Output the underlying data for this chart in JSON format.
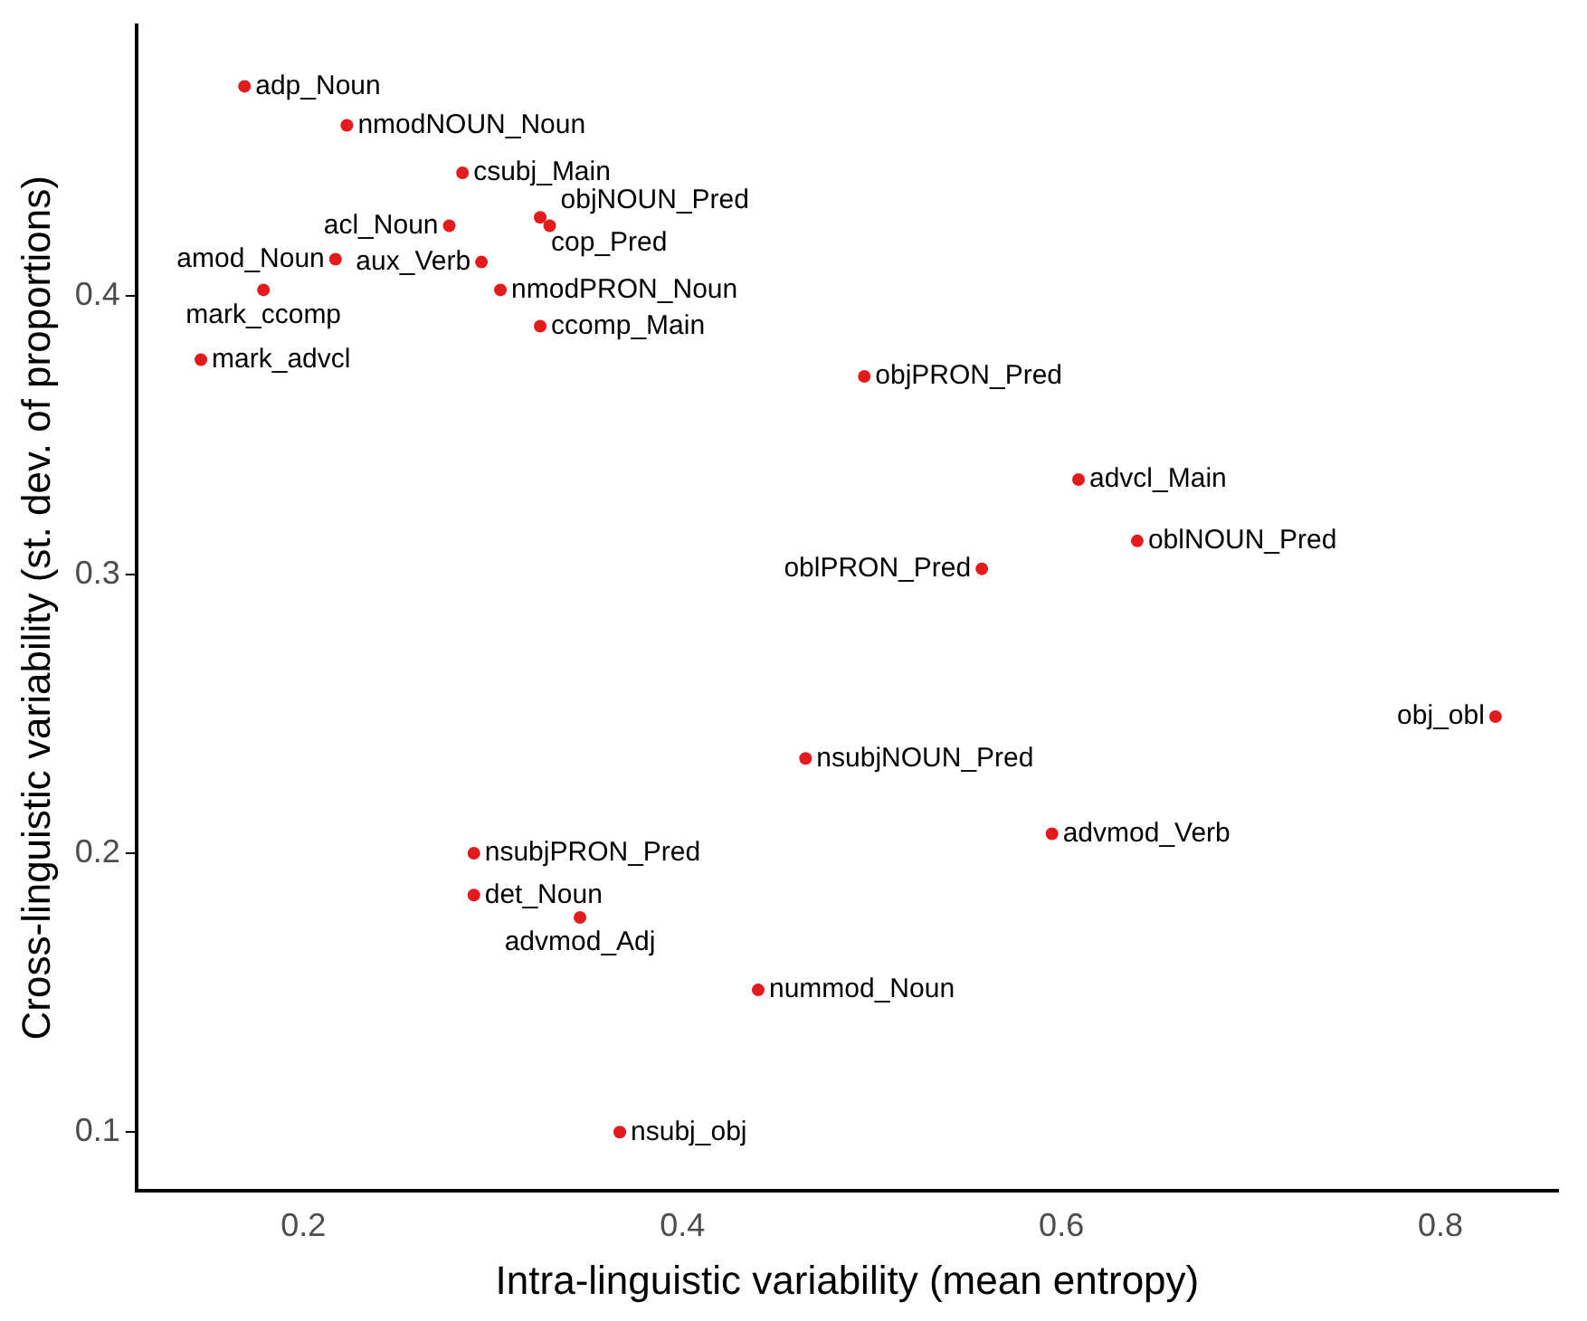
{
  "chart_data": {
    "type": "scatter",
    "xlabel": "Intra-linguistic variability (mean entropy)",
    "ylabel": "Cross-linguistic variability (st. dev. of proportions)",
    "x": [
      0.169,
      0.223,
      0.284,
      0.277,
      0.325,
      0.33,
      0.217,
      0.294,
      0.179,
      0.304,
      0.325,
      0.146,
      0.496,
      0.609,
      0.64,
      0.558,
      0.829,
      0.465,
      0.595,
      0.29,
      0.29,
      0.346,
      0.44,
      0.367
    ],
    "series": [
      {
        "color": "#e41a1c",
        "values": [
          0.475,
          0.461,
          0.444,
          0.425,
          0.428,
          0.425,
          0.413,
          0.412,
          0.402,
          0.402,
          0.389,
          0.377,
          0.371,
          0.334,
          0.312,
          0.302,
          0.249,
          0.234,
          0.207,
          0.2,
          0.185,
          0.177,
          0.151,
          0.1
        ]
      }
    ],
    "annotations": [
      {
        "text": "adp_Noun",
        "x": 0.169,
        "y": 0.475
      },
      {
        "text": "nmodNOUN_Noun",
        "x": 0.223,
        "y": 0.461
      },
      {
        "text": "csubj_Main",
        "x": 0.284,
        "y": 0.444
      },
      {
        "text": "acl_Noun",
        "x": 0.277,
        "y": 0.425
      },
      {
        "text": "cop_Pred",
        "x": 0.325,
        "y": 0.428
      },
      {
        "text": "objNOUN_Pred",
        "x": 0.33,
        "y": 0.425
      },
      {
        "text": "amod_Noun",
        "x": 0.217,
        "y": 0.413
      },
      {
        "text": "aux_Verb",
        "x": 0.294,
        "y": 0.412
      },
      {
        "text": "mark_ccomp",
        "x": 0.179,
        "y": 0.402
      },
      {
        "text": "nmodPRON_Noun",
        "x": 0.304,
        "y": 0.402
      },
      {
        "text": "ccomp_Main",
        "x": 0.325,
        "y": 0.389
      },
      {
        "text": "mark_advcl",
        "x": 0.146,
        "y": 0.377
      },
      {
        "text": "objPRON_Pred",
        "x": 0.496,
        "y": 0.371
      },
      {
        "text": "advcl_Main",
        "x": 0.609,
        "y": 0.334
      },
      {
        "text": "oblNOUN_Pred",
        "x": 0.64,
        "y": 0.312
      },
      {
        "text": "oblPRON_Pred",
        "x": 0.558,
        "y": 0.302
      },
      {
        "text": "obj_obl",
        "x": 0.829,
        "y": 0.249
      },
      {
        "text": "nsubjNOUN_Pred",
        "x": 0.465,
        "y": 0.234
      },
      {
        "text": "advmod_Verb",
        "x": 0.595,
        "y": 0.207
      },
      {
        "text": "nsubjPRON_Pred",
        "x": 0.29,
        "y": 0.2
      },
      {
        "text": "det_Noun",
        "x": 0.29,
        "y": 0.185
      },
      {
        "text": "advmod_Adj",
        "x": 0.346,
        "y": 0.177
      },
      {
        "text": "nummod_Noun",
        "x": 0.44,
        "y": 0.151
      },
      {
        "text": "nsubj_obj",
        "x": 0.367,
        "y": 0.1
      }
    ],
    "xlim": [
      0.112,
      0.862
    ],
    "xticks": [
      0.2,
      0.4,
      0.6,
      0.8
    ],
    "ylim": [
      0.079,
      0.497
    ],
    "yticks": [
      0.1,
      0.2,
      0.3,
      0.4
    ],
    "grid": false,
    "legend": false,
    "marker": "circle"
  }
}
